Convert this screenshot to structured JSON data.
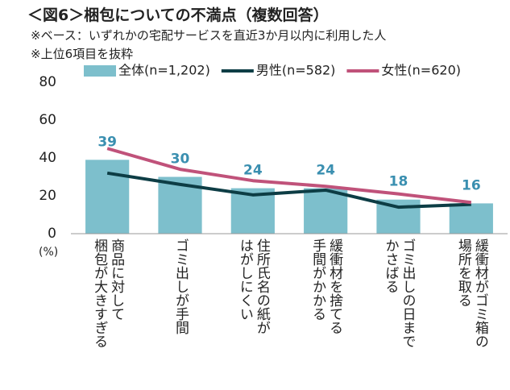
{
  "chart_data": {
    "type": "bar",
    "title": "＜図6＞梱包についての不満点（複数回答）",
    "subtitle": [
      "※ベース：いずれかの宅配サービスを直近3か月以内に利用した人",
      "※上位6項目を抜粋"
    ],
    "y_unit": "(%)",
    "categories": [
      "商品に対して\n梱包が大きすぎる",
      "ゴミ出しが手間",
      "住所氏名の紙が\nはがしにくい",
      "緩衝材を捨てる\n手間がかかる",
      "ゴミ出しの日まで\nかさばる",
      "緩衝材がゴミ箱の\n場所を取る"
    ],
    "ylim": [
      0,
      80
    ],
    "yticks": [
      0,
      20,
      40,
      60,
      80
    ],
    "grid": false,
    "series": [
      {
        "name": "全体(n=1,202)",
        "type": "bar",
        "color": "#7dbfcc",
        "values": [
          39,
          30,
          24,
          24,
          18,
          16
        ]
      },
      {
        "name": "男性(n=582)",
        "type": "line",
        "color": "#0d3d45",
        "values": [
          32,
          26,
          20.5,
          23,
          14,
          15.5
        ]
      },
      {
        "name": "女性(n=620)",
        "type": "line",
        "color": "#c0527a",
        "values": [
          45,
          34,
          28,
          25,
          21,
          16.5
        ]
      }
    ]
  }
}
